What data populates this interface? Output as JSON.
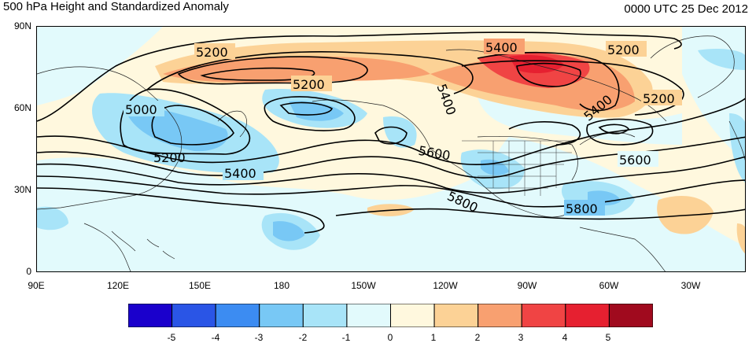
{
  "title": "500 hPa Height and Standardized Anomaly",
  "timestamp": "0000 UTC 25 Dec 2012",
  "y_axis_labels": [
    "90N",
    "60N",
    "30N",
    "0"
  ],
  "x_axis_labels": [
    "90E",
    "120E",
    "150E",
    "180",
    "150W",
    "120W",
    "90W",
    "60W",
    "30W"
  ],
  "colorbar": {
    "labels": [
      "-5",
      "-4",
      "-3",
      "-2",
      "-1",
      "0",
      "1",
      "2",
      "3",
      "4",
      "5"
    ],
    "colors": [
      "#1a00cc",
      "#2a55e6",
      "#3c8cf2",
      "#78c8f5",
      "#a8e4f8",
      "#e2fafc",
      "#fff8de",
      "#fcd296",
      "#f8a070",
      "#f04444",
      "#e62030",
      "#a00a1e"
    ]
  },
  "contour_labels": [
    "5200",
    "5400",
    "5200",
    "5200",
    "5000",
    "5400",
    "5400",
    "5200",
    "5200",
    "5400",
    "5600",
    "5600",
    "5800",
    "5800"
  ],
  "chart_data": {
    "type": "heatmap",
    "title": "500 hPa Height and Standardized Anomaly",
    "subtitle": "0000 UTC 25 Dec 2012",
    "xlim": [
      90,
      350
    ],
    "ylim": [
      0,
      90
    ],
    "contour_levels": [
      5000,
      5200,
      5400,
      5600,
      5800
    ],
    "colorbar_range": [
      -5,
      5
    ],
    "colorbar_ticks": [
      -5,
      -4,
      -3,
      -2,
      -1,
      0,
      1,
      2,
      3,
      4,
      5
    ]
  }
}
